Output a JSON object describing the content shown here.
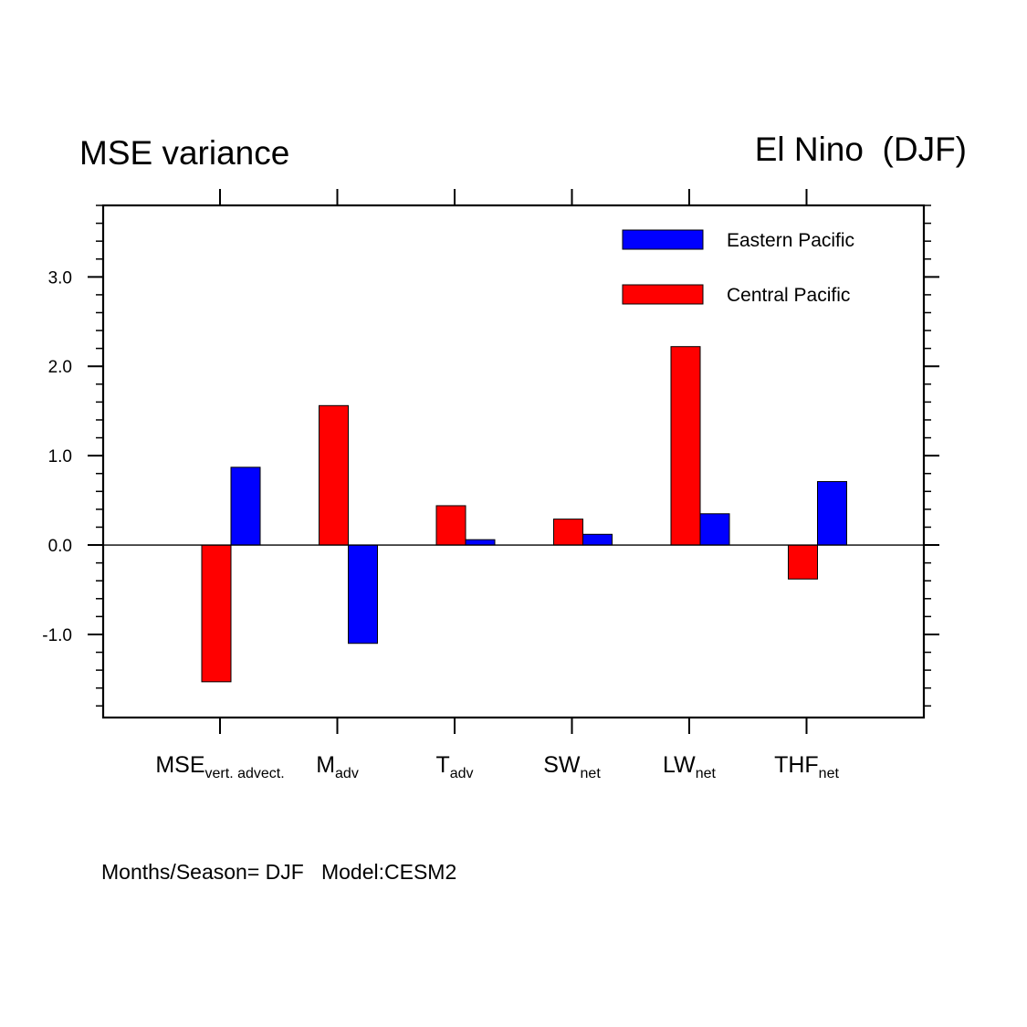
{
  "header": {
    "left_title": "MSE variance",
    "right_title": "El Nino  (DJF)"
  },
  "footer": {
    "text": "Months/Season= DJF   Model:CESM2"
  },
  "chart_data": {
    "type": "bar",
    "categories": [
      {
        "main": "MSE",
        "sub": "vert. advect."
      },
      {
        "main": "M",
        "sub": "adv"
      },
      {
        "main": "T",
        "sub": "adv"
      },
      {
        "main": "SW",
        "sub": "net"
      },
      {
        "main": "LW",
        "sub": "net"
      },
      {
        "main": "THF",
        "sub": "net"
      }
    ],
    "series": [
      {
        "name": "Central Pacific",
        "color": "#ff0000",
        "values": [
          -1.53,
          1.56,
          0.44,
          0.29,
          2.22,
          -0.38
        ]
      },
      {
        "name": "Eastern Pacific",
        "color": "#0000ff",
        "values": [
          0.87,
          -1.1,
          0.06,
          0.12,
          0.35,
          0.71
        ]
      }
    ],
    "legend_order": [
      "Eastern Pacific",
      "Central Pacific"
    ],
    "legend_position": "top-right",
    "ylim": [
      -1.93,
      3.8
    ],
    "yticks": [
      -1.0,
      0.0,
      1.0,
      2.0,
      3.0
    ],
    "ytick_labels": [
      "-1.0",
      "0.0",
      "1.0",
      "2.0",
      "3.0"
    ],
    "zero_line": true,
    "grid": false
  }
}
